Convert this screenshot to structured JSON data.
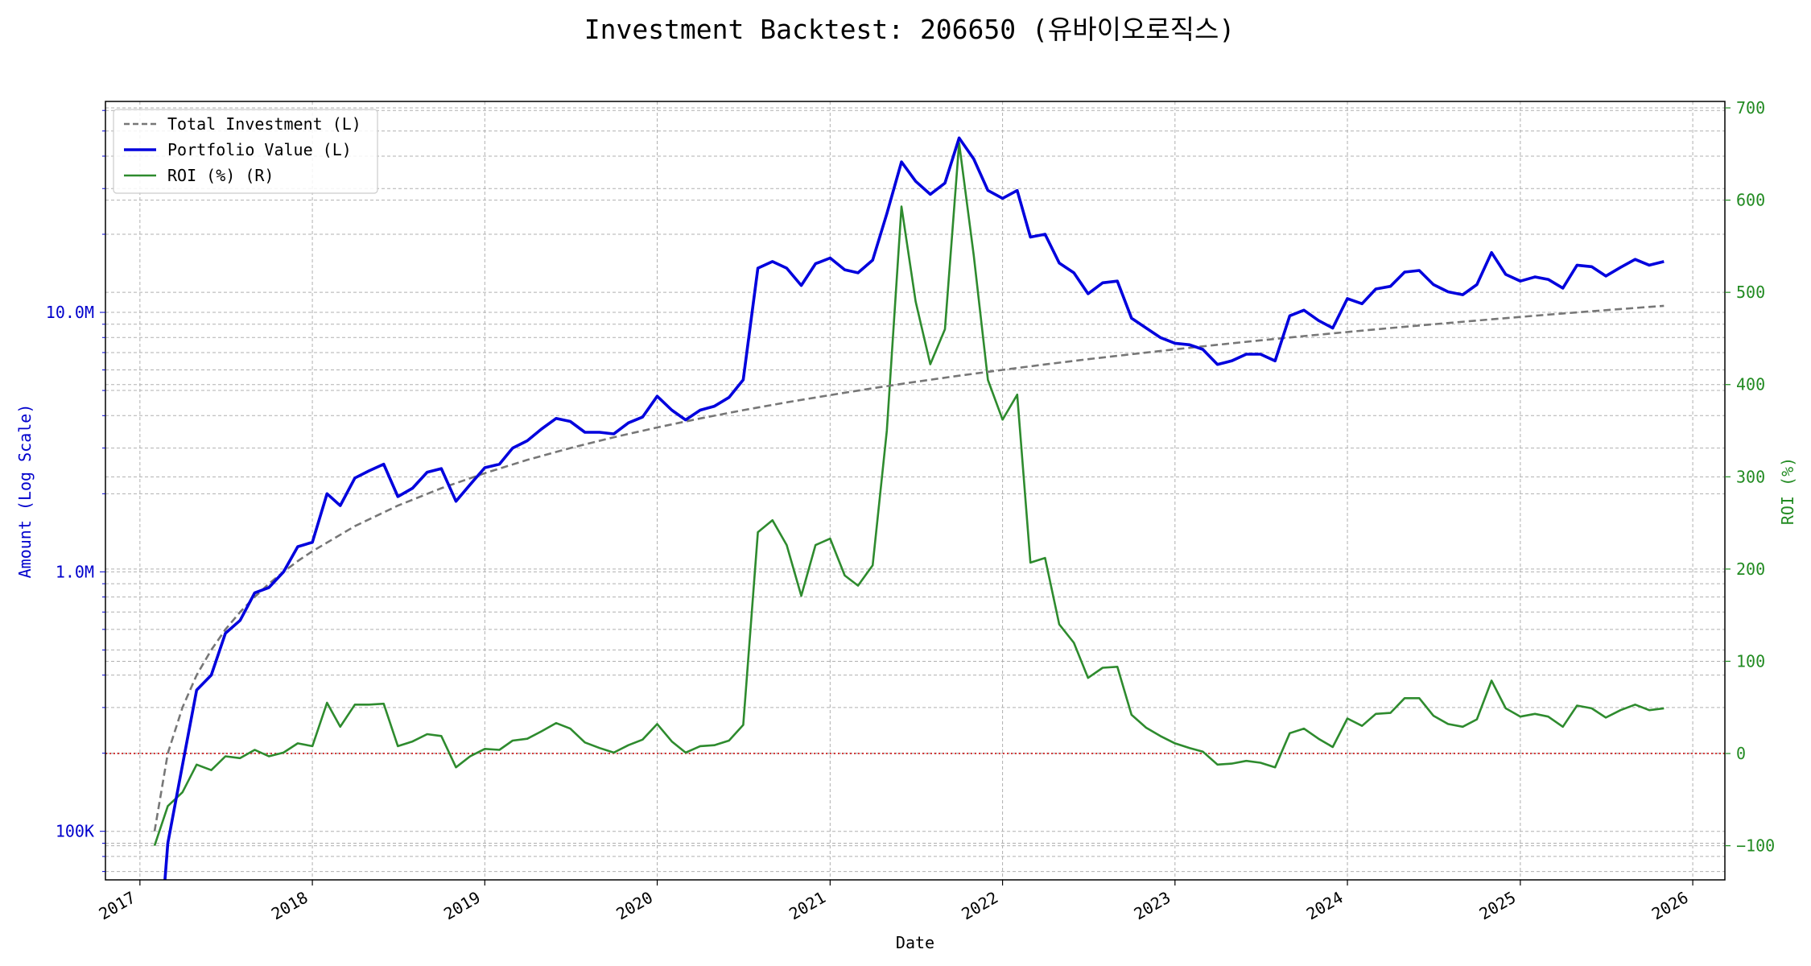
{
  "chart_data": {
    "type": "line",
    "title": "Investment Backtest: 206650 (유바이오로직스)",
    "xlabel": "Date",
    "ylabel_left": "Amount (Log Scale)",
    "ylabel_right": "ROI (%)",
    "left_axis": {
      "scale": "log",
      "range": [
        65000,
        65000000
      ],
      "ticks": [
        {
          "value": 100000,
          "label": "100K"
        },
        {
          "value": 1000000,
          "label": "1.0M"
        },
        {
          "value": 10000000,
          "label": "10.0M"
        }
      ]
    },
    "right_axis": {
      "scale": "linear",
      "range": [
        -137,
        707
      ],
      "ticks": [
        {
          "value": -100,
          "label": "−100"
        },
        {
          "value": 0,
          "label": "0"
        },
        {
          "value": 100,
          "label": "100"
        },
        {
          "value": 200,
          "label": "200"
        },
        {
          "value": 300,
          "label": "300"
        },
        {
          "value": 400,
          "label": "400"
        },
        {
          "value": 500,
          "label": "500"
        },
        {
          "value": 600,
          "label": "600"
        },
        {
          "value": 700,
          "label": "700"
        }
      ]
    },
    "x_axis": {
      "range": [
        "2016-10-20",
        "2026-03-10"
      ],
      "ticks": [
        "2017",
        "2018",
        "2019",
        "2020",
        "2021",
        "2022",
        "2023",
        "2024",
        "2025",
        "2026"
      ]
    },
    "grid": true,
    "legend_position": "upper-left",
    "reference_line": {
      "axis": "right",
      "value": 0,
      "color": "#cc0000",
      "style": "dotted"
    },
    "colors": {
      "left_axis": "#0000cc",
      "right_axis": "#228b22",
      "investment": "#777777",
      "portfolio": "#0000dd",
      "roi": "#2e8b2e"
    },
    "series": [
      {
        "name": "Total Investment (L)",
        "axis": "left",
        "style": "dashed",
        "x": [
          "2017-02",
          "2017-03",
          "2017-04",
          "2017-05",
          "2017-06",
          "2017-07",
          "2017-08",
          "2017-09",
          "2017-10",
          "2017-11",
          "2017-12",
          "2018-01",
          "2018-04",
          "2018-07",
          "2018-10",
          "2019-01",
          "2019-04",
          "2019-07",
          "2019-10",
          "2020-01",
          "2020-04",
          "2020-07",
          "2020-10",
          "2021-01",
          "2021-04",
          "2021-07",
          "2021-10",
          "2022-01",
          "2022-04",
          "2022-07",
          "2022-10",
          "2023-01",
          "2023-04",
          "2023-07",
          "2023-10",
          "2024-01",
          "2024-04",
          "2024-07",
          "2024-10",
          "2025-01",
          "2025-04",
          "2025-07",
          "2025-11"
        ],
        "values": [
          100000,
          200000,
          300000,
          400000,
          500000,
          600000,
          700000,
          800000,
          900000,
          1000000,
          1100000,
          1200000,
          1500000,
          1800000,
          2100000,
          2400000,
          2700000,
          3000000,
          3300000,
          3600000,
          3900000,
          4200000,
          4500000,
          4800000,
          5100000,
          5400000,
          5700000,
          6000000,
          6300000,
          6600000,
          6900000,
          7200000,
          7500000,
          7800000,
          8100000,
          8400000,
          8700000,
          9000000,
          9300000,
          9600000,
          9900000,
          10200000,
          10600000
        ]
      },
      {
        "name": "Portfolio Value (L)",
        "axis": "left",
        "style": "solid",
        "x": [
          "2017-02",
          "2017-03",
          "2017-04",
          "2017-05",
          "2017-06",
          "2017-07",
          "2017-08",
          "2017-09",
          "2017-10",
          "2017-11",
          "2017-12",
          "2018-01",
          "2018-02",
          "2018-03",
          "2018-04",
          "2018-05",
          "2018-06",
          "2018-07",
          "2018-08",
          "2018-09",
          "2018-10",
          "2018-11",
          "2018-12",
          "2019-01",
          "2019-02",
          "2019-03",
          "2019-04",
          "2019-05",
          "2019-06",
          "2019-07",
          "2019-08",
          "2019-09",
          "2019-10",
          "2019-11",
          "2019-12",
          "2020-01",
          "2020-02",
          "2020-03",
          "2020-04",
          "2020-05",
          "2020-06",
          "2020-07",
          "2020-08",
          "2020-09",
          "2020-10",
          "2020-11",
          "2020-12",
          "2021-01",
          "2021-02",
          "2021-03",
          "2021-04",
          "2021-05",
          "2021-06",
          "2021-07",
          "2021-08",
          "2021-09",
          "2021-10",
          "2021-11",
          "2021-12",
          "2022-01",
          "2022-02",
          "2022-03",
          "2022-04",
          "2022-05",
          "2022-06",
          "2022-07",
          "2022-08",
          "2022-09",
          "2022-10",
          "2022-11",
          "2022-12",
          "2023-01",
          "2023-02",
          "2023-03",
          "2023-04",
          "2023-05",
          "2023-06",
          "2023-07",
          "2023-08",
          "2023-09",
          "2023-10",
          "2023-11",
          "2023-12",
          "2024-01",
          "2024-02",
          "2024-03",
          "2024-04",
          "2024-05",
          "2024-06",
          "2024-07",
          "2024-08",
          "2024-09",
          "2024-10",
          "2024-11",
          "2024-12",
          "2025-01",
          "2025-02",
          "2025-03",
          "2025-04",
          "2025-05",
          "2025-06",
          "2025-07",
          "2025-08",
          "2025-09",
          "2025-10",
          "2025-11"
        ],
        "values": [
          20000,
          90000,
          180000,
          350000,
          400000,
          580000,
          650000,
          830000,
          870000,
          1000000,
          1250000,
          1300000,
          2000000,
          1800000,
          2300000,
          2450000,
          2600000,
          1950000,
          2100000,
          2420000,
          2500000,
          1870000,
          2170000,
          2520000,
          2600000,
          3000000,
          3200000,
          3550000,
          3900000,
          3800000,
          3450000,
          3450000,
          3400000,
          3750000,
          3950000,
          4750000,
          4200000,
          3850000,
          4200000,
          4350000,
          4700000,
          5500000,
          14800000,
          15700000,
          14800000,
          12700000,
          15400000,
          16200000,
          14600000,
          14200000,
          15900000,
          24000000,
          38000000,
          32000000,
          28500000,
          31500000,
          47000000,
          39000000,
          29500000,
          27500000,
          29500000,
          19500000,
          20000000,
          15500000,
          14200000,
          11800000,
          13000000,
          13200000,
          9500000,
          8700000,
          8000000,
          7600000,
          7500000,
          7200000,
          6300000,
          6500000,
          6900000,
          6900000,
          6500000,
          9700000,
          10200000,
          9300000,
          8700000,
          11300000,
          10800000,
          12300000,
          12600000,
          14300000,
          14500000,
          12800000,
          12000000,
          11700000,
          12800000,
          17000000,
          14000000,
          13200000,
          13700000,
          13400000,
          12400000,
          15200000,
          15000000,
          13800000,
          14900000,
          16000000,
          15200000,
          15700000
        ]
      },
      {
        "name": "ROI (%) (R)",
        "axis": "right",
        "style": "solid",
        "x": [
          "2017-02",
          "2017-03",
          "2017-04",
          "2017-05",
          "2017-06",
          "2017-07",
          "2017-08",
          "2017-09",
          "2017-10",
          "2017-11",
          "2017-12",
          "2018-01",
          "2018-02",
          "2018-03",
          "2018-04",
          "2018-05",
          "2018-06",
          "2018-07",
          "2018-08",
          "2018-09",
          "2018-10",
          "2018-11",
          "2018-12",
          "2019-01",
          "2019-02",
          "2019-03",
          "2019-04",
          "2019-05",
          "2019-06",
          "2019-07",
          "2019-08",
          "2019-09",
          "2019-10",
          "2019-11",
          "2019-12",
          "2020-01",
          "2020-02",
          "2020-03",
          "2020-04",
          "2020-05",
          "2020-06",
          "2020-07",
          "2020-08",
          "2020-09",
          "2020-10",
          "2020-11",
          "2020-12",
          "2021-01",
          "2021-02",
          "2021-03",
          "2021-04",
          "2021-05",
          "2021-06",
          "2021-07",
          "2021-08",
          "2021-09",
          "2021-10",
          "2021-11",
          "2021-12",
          "2022-01",
          "2022-02",
          "2022-03",
          "2022-04",
          "2022-05",
          "2022-06",
          "2022-07",
          "2022-08",
          "2022-09",
          "2022-10",
          "2022-11",
          "2022-12",
          "2023-01",
          "2023-02",
          "2023-03",
          "2023-04",
          "2023-05",
          "2023-06",
          "2023-07",
          "2023-08",
          "2023-09",
          "2023-10",
          "2023-11",
          "2023-12",
          "2024-01",
          "2024-02",
          "2024-03",
          "2024-04",
          "2024-05",
          "2024-06",
          "2024-07",
          "2024-08",
          "2024-09",
          "2024-10",
          "2024-11",
          "2024-12",
          "2025-01",
          "2025-02",
          "2025-03",
          "2025-04",
          "2025-05",
          "2025-06",
          "2025-07",
          "2025-08",
          "2025-09",
          "2025-10",
          "2025-11"
        ],
        "values": [
          -100,
          -57,
          -42,
          -12,
          -18,
          -3,
          -5,
          4,
          -3,
          1,
          11,
          8,
          55,
          29,
          53,
          53,
          54,
          8,
          13,
          21,
          19,
          -15,
          -3,
          5,
          4,
          14,
          16,
          24,
          33,
          27,
          12,
          6,
          1,
          9,
          15,
          32,
          13,
          1,
          8,
          9,
          14,
          31,
          240,
          253,
          226,
          171,
          226,
          233,
          193,
          182,
          204,
          350,
          593,
          490,
          422,
          460,
          662,
          540,
          405,
          362,
          389,
          207,
          212,
          140,
          120,
          82,
          93,
          94,
          42,
          28,
          19,
          11,
          6,
          2,
          -12,
          -11,
          -8,
          -10,
          -15,
          22,
          27,
          16,
          7,
          38,
          30,
          43,
          44,
          60,
          60,
          41,
          32,
          29,
          37,
          79,
          49,
          40,
          43,
          40,
          29,
          52,
          49,
          39,
          47,
          53,
          47,
          49
        ]
      }
    ]
  }
}
